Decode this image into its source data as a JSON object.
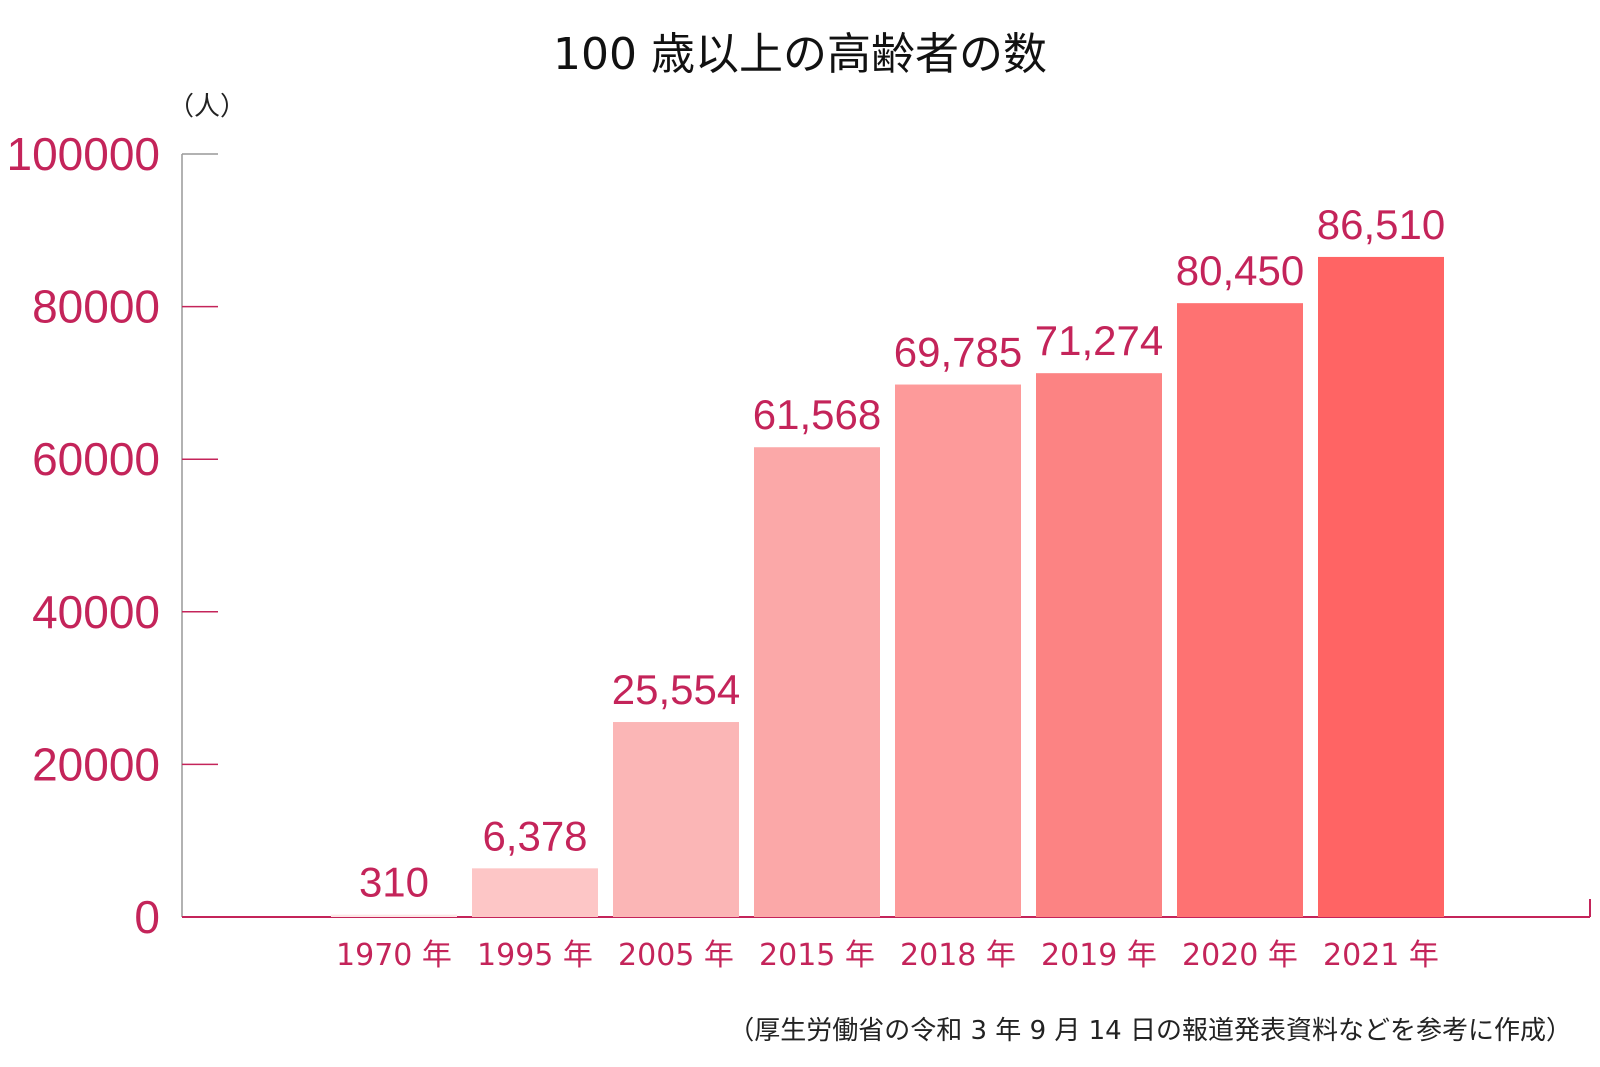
{
  "chart_data": {
    "type": "bar",
    "title": "100 歳以上の高齢者の数",
    "ylabel": "（人）",
    "xlabel": "",
    "categories": [
      "1970 年",
      "1995 年",
      "2005 年",
      "2015 年",
      "2018 年",
      "2019 年",
      "2020 年",
      "2021 年"
    ],
    "values": [
      310,
      6378,
      25554,
      61568,
      69785,
      71274,
      80450,
      86510
    ],
    "data_labels": [
      "310",
      "6,378",
      "25,554",
      "61,568",
      "69,785",
      "71,274",
      "80,450",
      "86,510"
    ],
    "yticks": [
      "0",
      "20000",
      "40000",
      "60000",
      "80000",
      "100000"
    ],
    "ylim": [
      0,
      100000
    ],
    "grid": false,
    "legend": "none",
    "bar_colors": [
      "#fde6e6",
      "#fdc6c6",
      "#fbb6b6",
      "#fba8a8",
      "#fd9a9a",
      "#fc8383",
      "#fe7272",
      "#ff6464"
    ],
    "axis_color": "#c4245a",
    "label_color": "#c4245a",
    "source_note": "（厚生労働省の令和 3 年 9 月 14 日の報道発表資料などを参考に作成）"
  }
}
